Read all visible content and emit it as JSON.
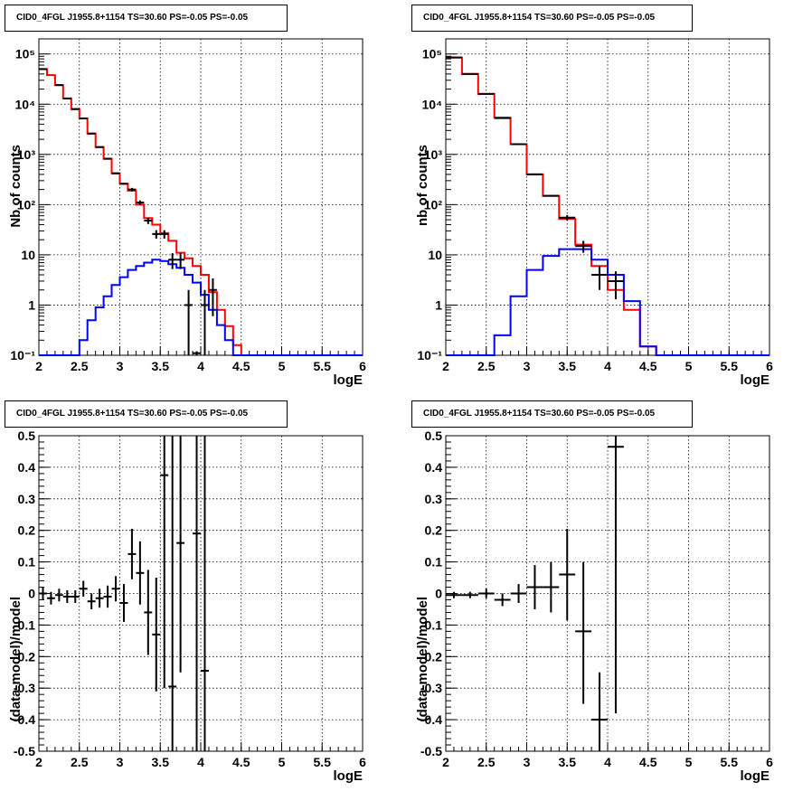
{
  "chart_data": [
    {
      "type": "line",
      "title": "CID0_4FGL J1955.8+1154 TS=30.60 PS=-0.05 PS=-0.05",
      "xlabel": "logE",
      "ylabel": "Nb of counts",
      "xlim": [
        2,
        6
      ],
      "ylim": [
        0.1,
        200000
      ],
      "yscale": "log",
      "grid": true,
      "x_ticks": [
        "2",
        "2.5",
        "3",
        "3.5",
        "4",
        "4.5",
        "5",
        "5.5",
        "6"
      ],
      "y_ticks": [
        "10⁻¹",
        "1",
        "10",
        "10²",
        "10³",
        "10⁴",
        "10⁵"
      ],
      "bin_edges": [
        2.0,
        2.1,
        2.2,
        2.3,
        2.4,
        2.5,
        2.6,
        2.7,
        2.8,
        2.9,
        3.0,
        3.1,
        3.2,
        3.3,
        3.4,
        3.5,
        3.6,
        3.7,
        3.8,
        3.9,
        4.0,
        4.1,
        4.2,
        4.3,
        4.4,
        4.5,
        4.6,
        4.7,
        4.8,
        4.9,
        5.0,
        5.1,
        5.2,
        5.3,
        5.4,
        5.5,
        5.6,
        5.7,
        5.8,
        5.9,
        6.0
      ],
      "series": [
        {
          "kind": "model_total",
          "color": "#ff0000",
          "values": [
            50000,
            38000,
            24000,
            13000,
            8000,
            5200,
            2600,
            1400,
            820,
            420,
            260,
            190,
            100,
            54,
            40,
            27,
            19,
            11,
            8.5,
            6,
            4,
            1.8,
            0.8,
            0.38,
            0.16,
            0.1,
            0.1,
            0.1,
            0.1,
            0.1,
            0.1,
            0.1,
            0.1,
            0.1,
            0.1,
            0.1,
            0.1,
            0.1,
            0.1,
            0.1
          ]
        },
        {
          "kind": "model_source",
          "color": "#0000ff",
          "values": [
            0.1,
            0.1,
            0.1,
            0.1,
            0.1,
            0.2,
            0.5,
            0.9,
            1.5,
            2.5,
            3.6,
            5,
            6,
            7,
            8,
            7.5,
            6.5,
            5.5,
            4,
            2.8,
            1.6,
            0.8,
            0.4,
            0.2,
            0.1,
            0.1,
            0.1,
            0.1,
            0.1,
            0.1,
            0.1,
            0.1,
            0.1,
            0.1,
            0.1,
            0.1,
            0.1,
            0.1,
            0.1,
            0.1
          ]
        }
      ],
      "data_points": [
        {
          "x": 2.05,
          "y": 50000
        },
        {
          "x": 2.25,
          "y": 24000
        },
        {
          "x": 2.35,
          "y": 13000
        },
        {
          "x": 2.45,
          "y": 8000
        },
        {
          "x": 2.55,
          "y": 5200
        },
        {
          "x": 2.65,
          "y": 2600
        },
        {
          "x": 2.75,
          "y": 1400
        },
        {
          "x": 2.85,
          "y": 820
        },
        {
          "x": 2.95,
          "y": 420
        },
        {
          "x": 3.05,
          "y": 260
        },
        {
          "x": 3.15,
          "y": 200,
          "lo": 185,
          "hi": 215
        },
        {
          "x": 3.25,
          "y": 110,
          "lo": 99,
          "hi": 121
        },
        {
          "x": 3.35,
          "y": 48,
          "lo": 41,
          "hi": 55
        },
        {
          "x": 3.45,
          "y": 26,
          "lo": 21,
          "hi": 31
        },
        {
          "x": 3.55,
          "y": 26,
          "lo": 21,
          "hi": 31
        },
        {
          "x": 3.65,
          "y": 8,
          "lo": 5.2,
          "hi": 10.8
        },
        {
          "x": 3.75,
          "y": 8,
          "lo": 5.2,
          "hi": 10.8
        },
        {
          "x": 3.85,
          "y": 1,
          "lo": 0.1,
          "hi": 2
        },
        {
          "x": 3.95,
          "y": 0.11,
          "lo": 0.1,
          "hi": 0.12
        },
        {
          "x": 4.05,
          "y": 1,
          "lo": 0.1,
          "hi": 2
        },
        {
          "x": 4.15,
          "y": 2,
          "lo": 0.6,
          "hi": 3.4
        }
      ]
    },
    {
      "type": "line",
      "title": "CID0_4FGL J1955.8+1154 TS=30.60 PS=-0.05 PS=-0.05",
      "xlabel": "logE",
      "ylabel": "nb of counts",
      "xlim": [
        2,
        6
      ],
      "ylim": [
        0.1,
        200000
      ],
      "yscale": "log",
      "grid": true,
      "x_ticks": [
        "2",
        "2.5",
        "3",
        "3.5",
        "4",
        "4.5",
        "5",
        "5.5",
        "6"
      ],
      "y_ticks": [
        "10⁻¹",
        "1",
        "10",
        "10²",
        "10³",
        "10⁴",
        "10⁵"
      ],
      "bin_edges": [
        2.0,
        2.2,
        2.4,
        2.6,
        2.8,
        3.0,
        3.2,
        3.4,
        3.6,
        3.8,
        4.0,
        4.2,
        4.4,
        4.6,
        4.8,
        5.0,
        5.2,
        5.4,
        5.6,
        5.8,
        6.0
      ],
      "series": [
        {
          "kind": "model_total",
          "color": "#ff0000",
          "values": [
            85000,
            40000,
            16000,
            5400,
            1600,
            400,
            150,
            52,
            16,
            6,
            2,
            0.8,
            0.15,
            0.1,
            0.1,
            0.1,
            0.1,
            0.1,
            0.1,
            0.1
          ]
        },
        {
          "kind": "model_source",
          "color": "#0000ff",
          "values": [
            0.1,
            0.1,
            0.1,
            0.25,
            1.5,
            5,
            9.5,
            13,
            13,
            8,
            4,
            1.2,
            0.15,
            0.1,
            0.1,
            0.1,
            0.1,
            0.1,
            0.1,
            0.1
          ]
        }
      ],
      "data_points": [
        {
          "x": 2.1,
          "y": 85000
        },
        {
          "x": 2.3,
          "y": 40000
        },
        {
          "x": 2.5,
          "y": 16000
        },
        {
          "x": 2.7,
          "y": 5300
        },
        {
          "x": 2.9,
          "y": 1600
        },
        {
          "x": 3.1,
          "y": 400
        },
        {
          "x": 3.3,
          "y": 150
        },
        {
          "x": 3.5,
          "y": 55,
          "lo": 48,
          "hi": 62
        },
        {
          "x": 3.7,
          "y": 15,
          "lo": 11,
          "hi": 19
        },
        {
          "x": 3.9,
          "y": 4,
          "lo": 2,
          "hi": 6
        },
        {
          "x": 4.1,
          "y": 3,
          "lo": 1.3,
          "hi": 4.7
        }
      ]
    },
    {
      "type": "scatter",
      "title": "CID0_4FGL J1955.8+1154 TS=30.60 PS=-0.05 PS=-0.05",
      "xlabel": "logE",
      "ylabel": "(data-model)/model",
      "xlim": [
        2,
        6
      ],
      "ylim": [
        -0.5,
        0.5
      ],
      "grid": true,
      "x_ticks": [
        "2",
        "2.5",
        "3",
        "3.5",
        "4",
        "4.5",
        "5",
        "5.5",
        "6"
      ],
      "y_ticks": [
        "-0.5",
        "-0.4",
        "-0.3",
        "-0.2",
        "-0.1",
        "0",
        "0.1",
        "0.2",
        "0.3",
        "0.4",
        "0.5"
      ],
      "x_halfwidth": 0.05,
      "points": [
        {
          "x": 2.05,
          "y": 0.0,
          "lo": -0.02,
          "hi": 0.02
        },
        {
          "x": 2.15,
          "y": -0.015,
          "lo": -0.035,
          "hi": 0.005
        },
        {
          "x": 2.25,
          "y": -0.005,
          "lo": -0.025,
          "hi": 0.015
        },
        {
          "x": 2.35,
          "y": -0.01,
          "lo": -0.03,
          "hi": 0.01
        },
        {
          "x": 2.45,
          "y": -0.01,
          "lo": -0.03,
          "hi": 0.01
        },
        {
          "x": 2.55,
          "y": 0.015,
          "lo": -0.01,
          "hi": 0.04
        },
        {
          "x": 2.65,
          "y": -0.025,
          "lo": -0.05,
          "hi": 0.0
        },
        {
          "x": 2.75,
          "y": -0.015,
          "lo": -0.045,
          "hi": 0.015
        },
        {
          "x": 2.85,
          "y": -0.01,
          "lo": -0.045,
          "hi": 0.025
        },
        {
          "x": 2.95,
          "y": 0.015,
          "lo": -0.025,
          "hi": 0.055
        },
        {
          "x": 3.05,
          "y": -0.03,
          "lo": -0.09,
          "hi": 0.03
        },
        {
          "x": 3.15,
          "y": 0.125,
          "lo": 0.045,
          "hi": 0.205
        },
        {
          "x": 3.25,
          "y": 0.065,
          "lo": -0.035,
          "hi": 0.165
        },
        {
          "x": 3.35,
          "y": -0.06,
          "lo": -0.195,
          "hi": 0.075
        },
        {
          "x": 3.45,
          "y": -0.13,
          "lo": -0.31,
          "hi": 0.05
        },
        {
          "x": 3.55,
          "y": 0.375,
          "lo": -0.3,
          "hi": 0.5
        },
        {
          "x": 3.65,
          "y": -0.295,
          "lo": -0.5,
          "hi": 0.5
        },
        {
          "x": 3.75,
          "y": 0.16,
          "lo": -0.25,
          "hi": 0.5
        },
        {
          "x": 3.95,
          "y": 0.19,
          "lo": -0.5,
          "hi": 0.5
        },
        {
          "x": 4.05,
          "y": -0.245,
          "lo": -0.5,
          "hi": 0.5
        }
      ]
    },
    {
      "type": "scatter",
      "title": "CID0_4FGL J1955.8+1154 TS=30.60 PS=-0.05 PS=-0.05",
      "xlabel": "logE",
      "ylabel": "(data-model)/model",
      "xlim": [
        2,
        6
      ],
      "ylim": [
        -0.5,
        0.5
      ],
      "grid": true,
      "x_ticks": [
        "2",
        "2.5",
        "3",
        "3.5",
        "4",
        "4.5",
        "5",
        "5.5",
        "6"
      ],
      "y_ticks": [
        "-0.5",
        "-0.4",
        "-0.3",
        "-0.2",
        "-0.1",
        "0",
        "0.1",
        "0.2",
        "0.3",
        "0.4",
        "0.5"
      ],
      "x_halfwidth": 0.1,
      "points": [
        {
          "x": 2.1,
          "y": -0.005,
          "lo": -0.015,
          "hi": 0.005
        },
        {
          "x": 2.3,
          "y": -0.005,
          "lo": -0.015,
          "hi": 0.005
        },
        {
          "x": 2.5,
          "y": 0.0,
          "lo": -0.015,
          "hi": 0.015
        },
        {
          "x": 2.7,
          "y": -0.02,
          "lo": -0.04,
          "hi": 0.0
        },
        {
          "x": 2.9,
          "y": 0.0,
          "lo": -0.03,
          "hi": 0.03
        },
        {
          "x": 3.1,
          "y": 0.02,
          "lo": -0.05,
          "hi": 0.09
        },
        {
          "x": 3.3,
          "y": 0.02,
          "lo": -0.06,
          "hi": 0.1
        },
        {
          "x": 3.5,
          "y": 0.06,
          "lo": -0.085,
          "hi": 0.205
        },
        {
          "x": 3.7,
          "y": -0.12,
          "lo": -0.35,
          "hi": 0.1
        },
        {
          "x": 3.9,
          "y": -0.4,
          "lo": -0.5,
          "hi": -0.25
        },
        {
          "x": 4.1,
          "y": 0.465,
          "lo": -0.38,
          "hi": 0.5
        }
      ]
    }
  ]
}
